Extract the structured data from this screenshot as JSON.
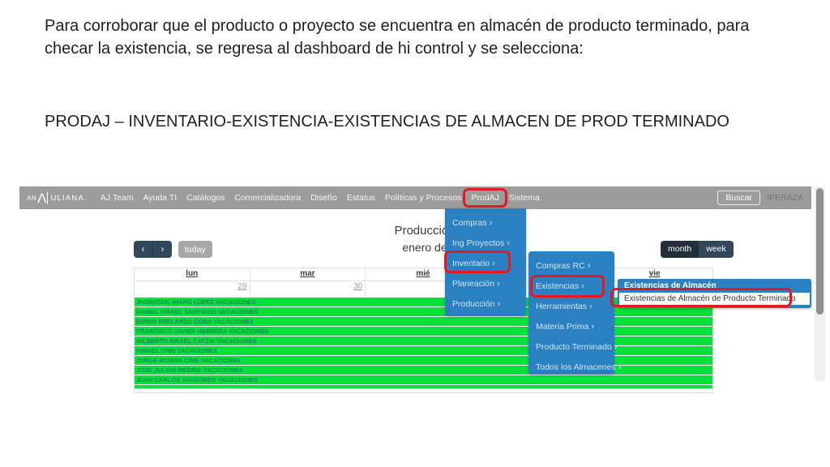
{
  "slide": {
    "paragraph": "Para corroborar que el producto o proyecto se encuentra en almacén de producto terminado, para checar la existencia, se regresa al dashboard de hi control y se selecciona:",
    "path_line": "PRODAJ – INVENTARIO-EXISTENCIA-EXISTENCIAS DE ALMACEN DE PROD TERMINADO"
  },
  "app": {
    "navbar": {
      "logo": {
        "an": "AN",
        "a": "Λ",
        "rest": "ULIANA."
      },
      "items": [
        "AJ Team",
        "Ayuda TI",
        "Catálogos",
        "Comercializadora",
        "Diseño",
        "Estatus",
        "Políticas y Procesos",
        "ProdAJ",
        "Sistema"
      ],
      "search_label": "Buscar",
      "username": "IPERAZA"
    },
    "toolbar": {
      "prev": "‹",
      "next": "›",
      "today": "today",
      "month": "month",
      "week": "week"
    },
    "title": {
      "line1": "Producción",
      "line2": "enero de"
    },
    "calendar": {
      "day_headers": [
        "lun",
        "mar",
        "mié",
        "",
        "vie"
      ],
      "dates": [
        "29",
        "30",
        "",
        "",
        ""
      ],
      "rows": [
        "JHONATAN JHARO LOPEZ VACACIONES",
        "DANIEL ISRAEL SANTIAGO VACACIONES",
        "EDWIN ABELARDO COBA VACACIONES",
        "FRANCISCO JAVIER HERRERA VACACIONES",
        "GILBERTO ISRAEL CATZIN VACACIONES",
        "ISMAEL CHIN VACACIONES",
        "JORGE ROMÁN CIME VACACIONES",
        "JOSE JULIAN MEDINA VACACIONES",
        "JUAN CARLOS SANSORES VACACIONES"
      ]
    },
    "menus": {
      "arrow": "›",
      "level1": {
        "items": [
          "Compras",
          "Ing Proyectos",
          "Inventario",
          "Planeación",
          "Producción"
        ]
      },
      "level2": {
        "items": [
          "Compras RC",
          "Existencias",
          "Herramientas",
          "Materia Prima",
          "Producto Terminado",
          "Todos los Almacenes"
        ]
      },
      "level3": {
        "header": "Existencias de Almacén",
        "item": "Existencias de Almacén de Producto Terminado"
      }
    },
    "colors": {
      "menu_blue": "#2a80c1",
      "highlight_red": "#e01a21",
      "event_green": "#07e23a",
      "navbar_gray": "#9c9c9c"
    }
  }
}
